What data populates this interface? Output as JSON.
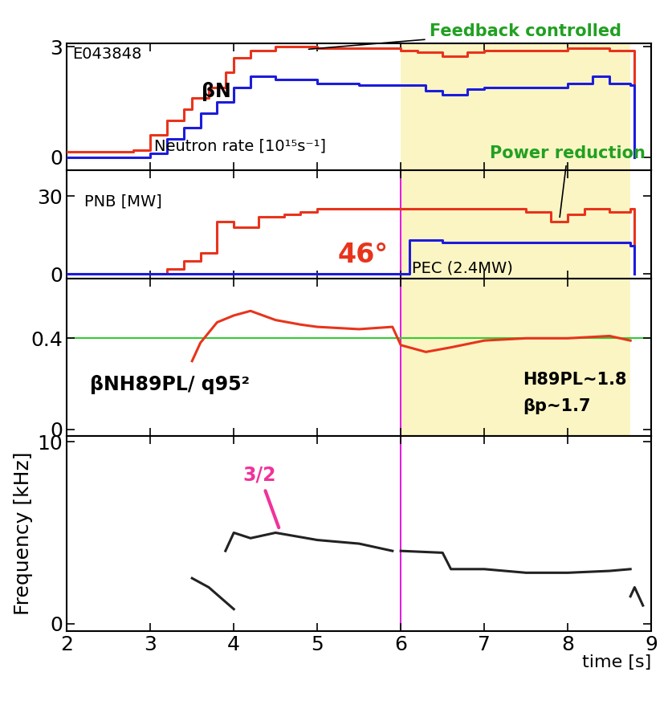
{
  "chart_data": [
    {
      "type": "line",
      "title": "E043848",
      "xlim": [
        2,
        9
      ],
      "xticks": [
        2,
        3,
        4,
        5,
        6,
        7,
        8,
        9
      ],
      "ylim": [
        -0.35,
        3.1
      ],
      "yticks": [
        0,
        3
      ],
      "tick_labels": "y",
      "shaded_x": [
        6,
        8.75
      ],
      "annotations": [
        "Feedback controlled",
        "βN",
        "Neutron rate [10¹⁵s⁻¹]",
        "Power reduction"
      ],
      "series": [
        {
          "color": "#e8341c",
          "line_style": "steps",
          "x": [
            2,
            2.8,
            3.0,
            3.2,
            3.4,
            3.5,
            3.7,
            3.9,
            4.0,
            4.2,
            4.5,
            5.0,
            5.5,
            6.0,
            6.2,
            6.5,
            6.8,
            7.0,
            7.5,
            8.0,
            8.5,
            8.75,
            8.8
          ],
          "values": [
            0.15,
            0.2,
            0.6,
            1.0,
            1.3,
            1.6,
            1.9,
            2.3,
            2.7,
            2.9,
            3.0,
            2.95,
            2.95,
            2.9,
            2.85,
            2.75,
            2.85,
            2.9,
            2.9,
            2.95,
            2.9,
            2.9,
            0
          ]
        },
        {
          "color": "#1c1cdc",
          "line_style": "steps",
          "x": [
            2,
            3.0,
            3.2,
            3.4,
            3.6,
            3.8,
            4.0,
            4.2,
            4.5,
            5.0,
            5.5,
            6.0,
            6.3,
            6.5,
            6.8,
            7.0,
            7.5,
            8.0,
            8.3,
            8.5,
            8.75,
            8.8
          ],
          "values": [
            0,
            0.1,
            0.5,
            0.8,
            1.2,
            1.5,
            1.9,
            2.2,
            2.1,
            2.0,
            1.95,
            1.95,
            1.8,
            1.7,
            1.85,
            1.9,
            1.9,
            2.0,
            2.2,
            2.0,
            1.95,
            0
          ]
        }
      ]
    },
    {
      "type": "line",
      "xlim": [
        2,
        9
      ],
      "xticks": [
        2,
        3,
        4,
        5,
        6,
        7,
        8,
        9
      ],
      "ylim": [
        -2,
        40
      ],
      "yticks": [
        0,
        30
      ],
      "tick_labels": "y",
      "shaded_x": [
        6,
        8.75
      ],
      "marker_x": 6,
      "annotations": [
        "PNB [MW]",
        "46°",
        "PEC (2.4MW)"
      ],
      "series": [
        {
          "color": "#e8341c",
          "line_style": "steps",
          "x": [
            2,
            3.0,
            3.2,
            3.4,
            3.6,
            3.8,
            4.0,
            4.3,
            4.6,
            4.8,
            5.0,
            6.0,
            7.0,
            7.5,
            7.8,
            8.0,
            8.2,
            8.5,
            8.75,
            8.8
          ],
          "values": [
            0,
            0,
            2,
            5,
            8,
            20,
            18,
            22,
            23,
            24,
            25,
            25,
            25,
            24,
            20,
            23,
            25,
            24,
            25,
            0
          ]
        },
        {
          "color": "#1c1cdc",
          "line_style": "steps",
          "x": [
            2,
            6.0,
            6.1,
            6.5,
            8.7,
            8.75,
            8.8
          ],
          "values": [
            0,
            0,
            13,
            12,
            12,
            11,
            0
          ]
        }
      ]
    },
    {
      "type": "line",
      "xlim": [
        2,
        9
      ],
      "xticks": [
        2,
        3,
        4,
        5,
        6,
        7,
        8,
        9
      ],
      "ylim": [
        -0.03,
        0.66
      ],
      "yticks": [
        0,
        0.4
      ],
      "tick_labels": "y",
      "shaded_x": [
        6,
        8.75
      ],
      "marker_x": 6,
      "hline": 0.4,
      "hline_color": "#33cc33",
      "annotations": [
        "βNH89PL/ q95²",
        "H89PL~1.8",
        "βp~1.7"
      ],
      "series": [
        {
          "color": "#e8341c",
          "line_style": "solid",
          "x": [
            3.5,
            3.6,
            3.8,
            4.0,
            4.2,
            4.5,
            4.8,
            5.0,
            5.5,
            5.9,
            6.0,
            6.3,
            6.6,
            7.0,
            7.5,
            8.0,
            8.5,
            8.75
          ],
          "values": [
            0.3,
            0.38,
            0.47,
            0.5,
            0.52,
            0.48,
            0.46,
            0.45,
            0.44,
            0.45,
            0.37,
            0.34,
            0.36,
            0.39,
            0.4,
            0.4,
            0.41,
            0.39
          ]
        }
      ]
    },
    {
      "type": "line",
      "ylabel": "Frequency [kHz]",
      "xlabel": "time [s]",
      "xlim": [
        2,
        9
      ],
      "xticks": [
        2,
        3,
        4,
        5,
        6,
        7,
        8,
        9
      ],
      "ylim": [
        -0.4,
        10.3
      ],
      "yticks": [
        0,
        10
      ],
      "marker_x": 6,
      "annotations": [
        "3/2"
      ],
      "series": [
        {
          "color": "#222222",
          "line_style": "solid",
          "x": [
            3.9,
            4.0,
            4.2,
            4.5,
            5.0,
            5.5,
            5.9
          ],
          "values": [
            4.0,
            5.0,
            4.7,
            5.0,
            4.6,
            4.4,
            4.0
          ]
        },
        {
          "color": "#222222",
          "line_style": "solid",
          "x": [
            3.5,
            3.7,
            3.9,
            4.0
          ],
          "values": [
            2.5,
            2.0,
            1.2,
            0.8
          ]
        },
        {
          "color": "#222222",
          "line_style": "solid",
          "x": [
            6.0,
            6.5,
            6.6,
            7.0,
            7.5,
            8.0,
            8.5,
            8.75
          ],
          "values": [
            4.0,
            3.9,
            3.0,
            3.0,
            2.8,
            2.8,
            2.9,
            3.0
          ]
        },
        {
          "color": "#222222",
          "line_style": "solid",
          "x": [
            8.75,
            8.8,
            8.9
          ],
          "values": [
            1.5,
            2.0,
            1.0
          ]
        }
      ]
    }
  ]
}
